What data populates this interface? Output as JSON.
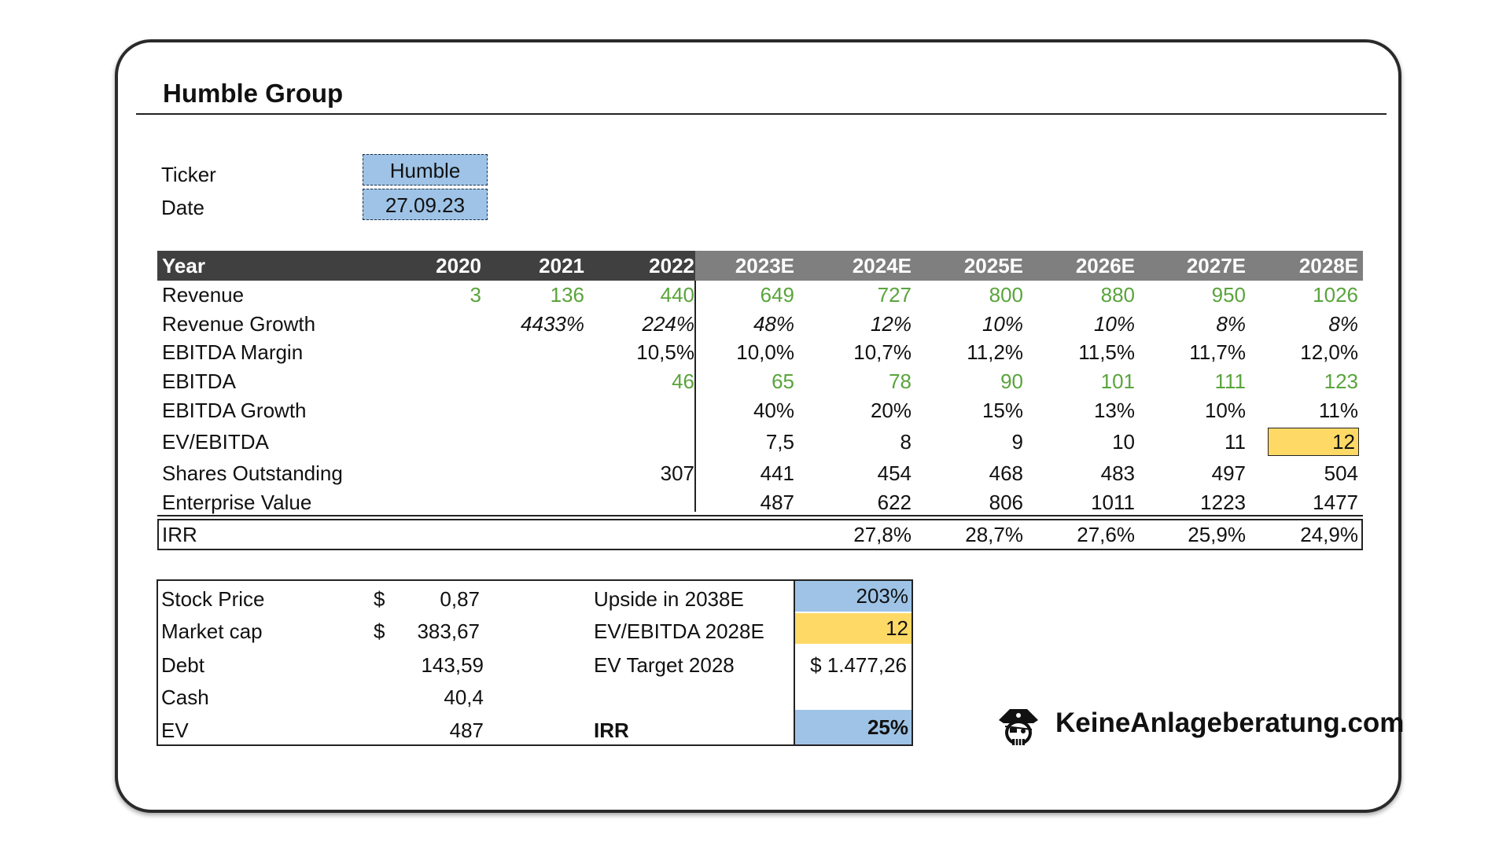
{
  "title": "Humble Group",
  "meta": {
    "ticker_label": "Ticker",
    "ticker_value": "Humble",
    "date_label": "Date",
    "date_value": "27.09.23"
  },
  "table": {
    "header_label": "Year",
    "years": [
      "2020",
      "2021",
      "2022",
      "2023E",
      "2024E",
      "2025E",
      "2026E",
      "2027E",
      "2028E"
    ],
    "rows": [
      {
        "label": "Revenue",
        "values": [
          "3",
          "136",
          "440",
          "649",
          "727",
          "800",
          "880",
          "950",
          "1026"
        ],
        "style": "green"
      },
      {
        "label": "Revenue Growth",
        "values": [
          "",
          "4433%",
          "224%",
          "48%",
          "12%",
          "10%",
          "10%",
          "8%",
          "8%"
        ],
        "style": "italic"
      },
      {
        "label": "EBITDA Margin",
        "values": [
          "",
          "",
          "10,5%",
          "10,0%",
          "10,7%",
          "11,2%",
          "11,5%",
          "11,7%",
          "12,0%"
        ],
        "style": "plain"
      },
      {
        "label": "EBITDA",
        "values": [
          "",
          "",
          "46",
          "65",
          "78",
          "90",
          "101",
          "111",
          "123"
        ],
        "style": "green"
      },
      {
        "label": "EBITDA Growth",
        "values": [
          "",
          "",
          "",
          "40%",
          "20%",
          "15%",
          "13%",
          "10%",
          "11%"
        ],
        "style": "plain"
      },
      {
        "label": "EV/EBITDA",
        "values": [
          "",
          "",
          "",
          "7,5",
          "8",
          "9",
          "10",
          "11",
          "12"
        ],
        "style": "plain"
      },
      {
        "label": "Shares Outstanding",
        "values": [
          "",
          "",
          "307",
          "441",
          "454",
          "468",
          "483",
          "497",
          "504"
        ],
        "style": "plain"
      },
      {
        "label": "Enterprise Value",
        "values": [
          "",
          "",
          "",
          "487",
          "622",
          "806",
          "1011",
          "1223",
          "1477"
        ],
        "style": "plain"
      }
    ],
    "irr_row": {
      "label": "IRR",
      "values": [
        "",
        "",
        "",
        "",
        "27,8%",
        "28,7%",
        "27,6%",
        "25,9%",
        "24,9%"
      ]
    }
  },
  "summary": {
    "stock_price_label": "Stock Price",
    "stock_price_currency": "$",
    "stock_price_value": "0,87",
    "market_cap_label": "Market cap",
    "market_cap_currency": "$",
    "market_cap_value": "383,67",
    "debt_label": "Debt",
    "debt_value": "143,59",
    "cash_label": "Cash",
    "cash_value": "40,4",
    "ev_label": "EV",
    "ev_value": "487",
    "upside_label": "Upside in 2038E",
    "upside_value": "203%",
    "ev_ebitda_label": "EV/EBITDA 2028E",
    "ev_ebitda_value": "12",
    "ev_target_label": "EV Target 2028",
    "ev_target_value": "$ 1.477,26",
    "irr_label": "IRR",
    "irr_value": "25%"
  },
  "brand": {
    "name": "KeineAnlageberatung.com",
    "logo_icon": "pirate-skull-icon"
  },
  "colors": {
    "green": "#5aa43c",
    "blue_input": "#9ec3e6",
    "yellow_highlight": "#ffd966",
    "header_dark": "#404040",
    "header_projection": "#7f7f7f"
  }
}
